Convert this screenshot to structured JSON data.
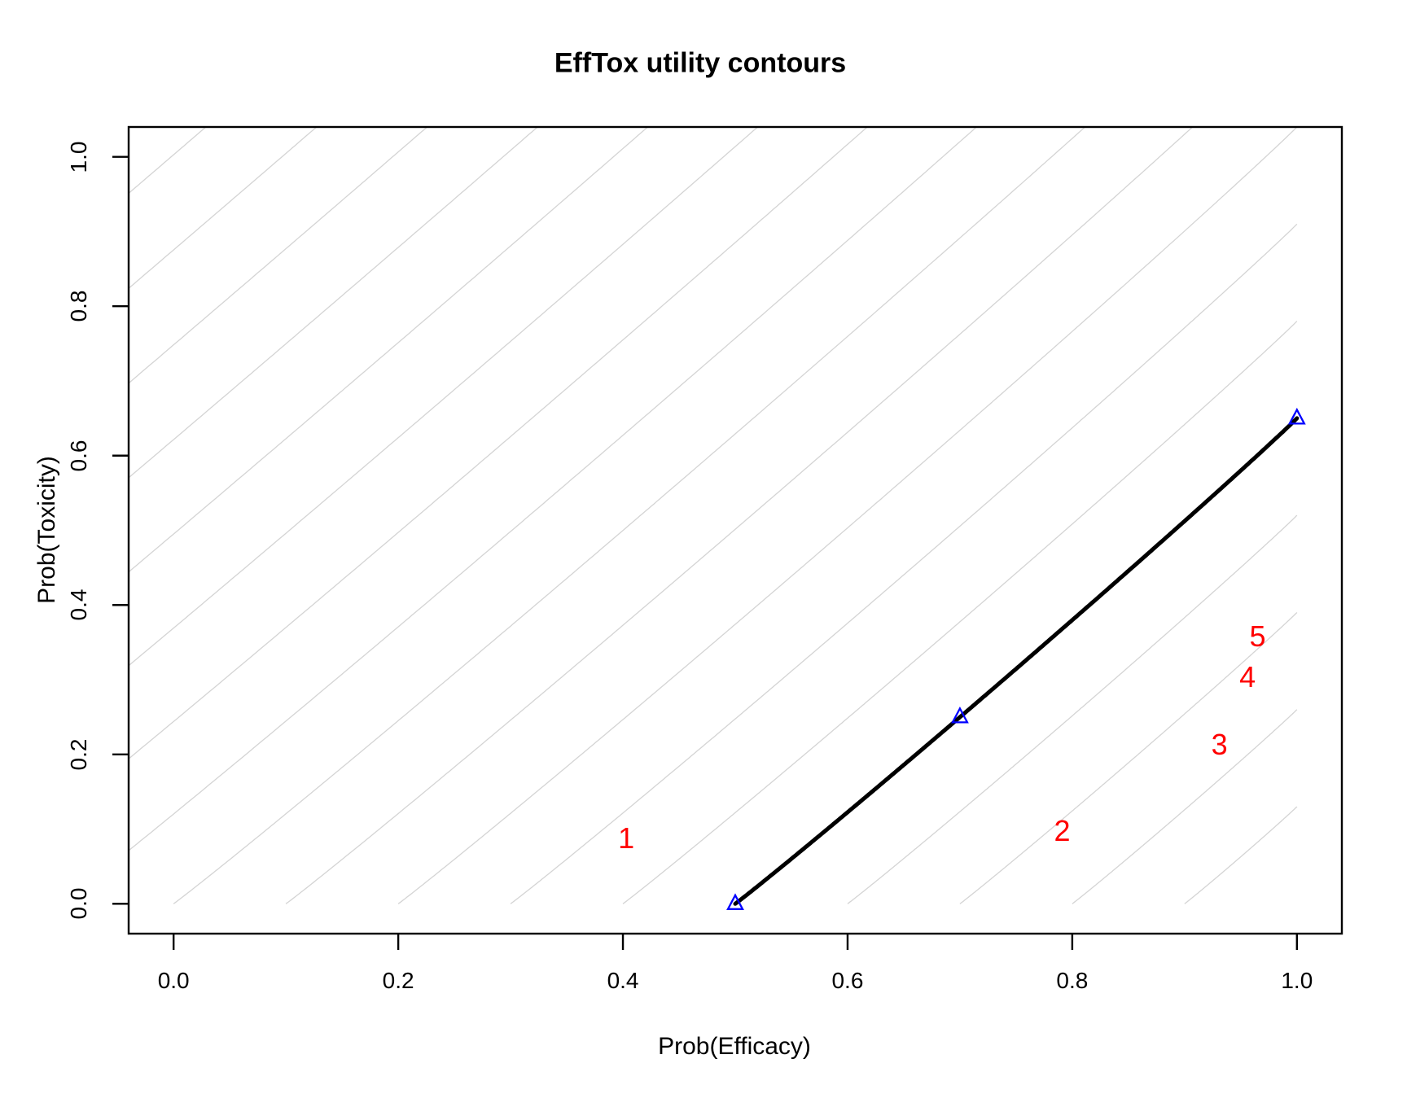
{
  "chart_data": {
    "type": "line",
    "title": "EffTox utility contours",
    "xlabel": "Prob(Efficacy)",
    "ylabel": "Prob(Toxicity)",
    "xlim": [
      -0.04,
      1.04
    ],
    "ylim": [
      -0.04,
      1.04
    ],
    "grid": false,
    "x_ticks": [
      0.0,
      0.2,
      0.4,
      0.6,
      0.8,
      1.0
    ],
    "x_tick_labels": [
      "0.0",
      "0.2",
      "0.4",
      "0.6",
      "0.8",
      "1.0"
    ],
    "y_ticks": [
      0.0,
      0.2,
      0.4,
      0.6,
      0.8,
      1.0
    ],
    "y_tick_labels": [
      "0.0",
      "0.2",
      "0.4",
      "0.6",
      "0.8",
      "1.0"
    ],
    "utility_params": {
      "eff0": 0.5,
      "tox1": 0.65,
      "eff_star": 0.7,
      "tox_star": 0.25,
      "p": 0.9771593
    },
    "utility_contours": {
      "min": -3.0,
      "max": 3.0,
      "step": 0.2
    },
    "target_contour": {
      "utility": 0.0,
      "hinge_points": [
        {
          "eff": 0.5,
          "tox": 0.0
        },
        {
          "eff": 0.7,
          "tox": 0.25
        },
        {
          "eff": 1.0,
          "tox": 0.65
        }
      ]
    },
    "dose_labels": [
      {
        "label": "1",
        "eff": 0.403,
        "tox": 0.087
      },
      {
        "label": "2",
        "eff": 0.791,
        "tox": 0.097
      },
      {
        "label": "3",
        "eff": 0.931,
        "tox": 0.213
      },
      {
        "label": "4",
        "eff": 0.956,
        "tox": 0.303
      },
      {
        "label": "5",
        "eff": 0.965,
        "tox": 0.358
      }
    ],
    "colors": {
      "background": "#ffffff",
      "axis": "#000000",
      "contour_line": "#d4d4d4",
      "target_contour": "#000000",
      "hinge_marker": "#0000ff",
      "dose_label": "#ff0000"
    }
  }
}
